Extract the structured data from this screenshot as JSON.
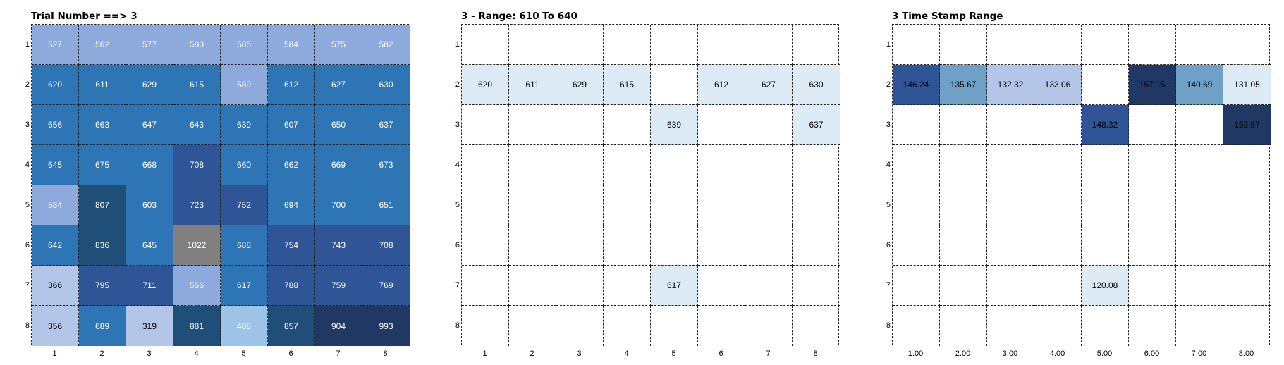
{
  "chart_data": [
    {
      "type": "heatmap",
      "title": "Trial Number ==> 3",
      "row_labels": [
        "1",
        "2",
        "3",
        "4",
        "5",
        "6",
        "7",
        "8"
      ],
      "col_labels": [
        "1",
        "2",
        "3",
        "4",
        "5",
        "6",
        "7",
        "8"
      ],
      "values": [
        [
          527,
          562,
          577,
          580,
          585,
          584,
          575,
          582
        ],
        [
          620,
          611,
          629,
          615,
          589,
          612,
          627,
          630
        ],
        [
          656,
          663,
          647,
          643,
          639,
          607,
          650,
          637
        ],
        [
          645,
          675,
          668,
          708,
          660,
          662,
          669,
          673
        ],
        [
          584,
          807,
          603,
          723,
          752,
          694,
          700,
          651
        ],
        [
          642,
          836,
          645,
          1022,
          688,
          754,
          743,
          708
        ],
        [
          366,
          795,
          711,
          566,
          617,
          788,
          759,
          769
        ],
        [
          356,
          689,
          319,
          881,
          408,
          857,
          904,
          993
        ]
      ],
      "colors": [
        [
          "#8ea9db",
          "#8ea9db",
          "#8ea9db",
          "#8ea9db",
          "#8ea9db",
          "#8ea9db",
          "#8ea9db",
          "#8ea9db"
        ],
        [
          "#2e75b6",
          "#2e75b6",
          "#2e75b6",
          "#2e75b6",
          "#8ea9db",
          "#2e75b6",
          "#2e75b6",
          "#2e75b6"
        ],
        [
          "#2e75b6",
          "#2e75b6",
          "#2e75b6",
          "#2e75b6",
          "#2e75b6",
          "#2e75b6",
          "#2e75b6",
          "#2e75b6"
        ],
        [
          "#2e75b6",
          "#2e75b6",
          "#2e75b6",
          "#2f5597",
          "#2e75b6",
          "#2e75b6",
          "#2e75b6",
          "#2e75b6"
        ],
        [
          "#8ea9db",
          "#1f4e79",
          "#2e75b6",
          "#2f5597",
          "#2f5597",
          "#2e75b6",
          "#2e75b6",
          "#2e75b6"
        ],
        [
          "#2e75b6",
          "#1f4e79",
          "#2e75b6",
          "#808080",
          "#2e75b6",
          "#2f5597",
          "#2f5597",
          "#2f5597"
        ],
        [
          "#b4c6e7",
          "#2f5597",
          "#2f5597",
          "#8ea9db",
          "#2e75b6",
          "#2f5597",
          "#2f5597",
          "#2f5597"
        ],
        [
          "#b4c6e7",
          "#2e75b6",
          "#b4c6e7",
          "#1f4e79",
          "#9dc3e6",
          "#1f4e79",
          "#203864",
          "#203864"
        ]
      ],
      "text_colors": [
        [
          "#ffffff",
          "#ffffff",
          "#ffffff",
          "#ffffff",
          "#ffffff",
          "#ffffff",
          "#ffffff",
          "#ffffff"
        ],
        [
          "#ffffff",
          "#ffffff",
          "#ffffff",
          "#ffffff",
          "#ffffff",
          "#ffffff",
          "#ffffff",
          "#ffffff"
        ],
        [
          "#ffffff",
          "#ffffff",
          "#ffffff",
          "#ffffff",
          "#ffffff",
          "#ffffff",
          "#ffffff",
          "#ffffff"
        ],
        [
          "#ffffff",
          "#ffffff",
          "#ffffff",
          "#ffffff",
          "#ffffff",
          "#ffffff",
          "#ffffff",
          "#ffffff"
        ],
        [
          "#ffffff",
          "#ffffff",
          "#ffffff",
          "#ffffff",
          "#ffffff",
          "#ffffff",
          "#ffffff",
          "#ffffff"
        ],
        [
          "#ffffff",
          "#ffffff",
          "#ffffff",
          "#ffffff",
          "#ffffff",
          "#ffffff",
          "#ffffff",
          "#ffffff"
        ],
        [
          "#000000",
          "#ffffff",
          "#ffffff",
          "#ffffff",
          "#ffffff",
          "#ffffff",
          "#ffffff",
          "#ffffff"
        ],
        [
          "#000000",
          "#ffffff",
          "#000000",
          "#ffffff",
          "#ffffff",
          "#ffffff",
          "#ffffff",
          "#ffffff"
        ]
      ]
    },
    {
      "type": "heatmap",
      "title": "3 - Range: 610 To 640",
      "row_labels": [
        "1",
        "2",
        "3",
        "4",
        "5",
        "6",
        "7",
        "8"
      ],
      "col_labels": [
        "1",
        "2",
        "3",
        "4",
        "5",
        "6",
        "7",
        "8"
      ],
      "values": [
        [
          null,
          null,
          null,
          null,
          null,
          null,
          null,
          null
        ],
        [
          620,
          611,
          629,
          615,
          null,
          612,
          627,
          630
        ],
        [
          null,
          null,
          null,
          null,
          639,
          null,
          null,
          637
        ],
        [
          null,
          null,
          null,
          null,
          null,
          null,
          null,
          null
        ],
        [
          null,
          null,
          null,
          null,
          null,
          null,
          null,
          null
        ],
        [
          null,
          null,
          null,
          null,
          null,
          null,
          null,
          null
        ],
        [
          null,
          null,
          null,
          null,
          617,
          null,
          null,
          null
        ],
        [
          null,
          null,
          null,
          null,
          null,
          null,
          null,
          null
        ]
      ],
      "highlight_color": "#ddebf7"
    },
    {
      "type": "heatmap",
      "title": "3 Time Stamp Range",
      "row_labels": [
        "1",
        "2",
        "3",
        "4",
        "5",
        "6",
        "7",
        "8"
      ],
      "col_labels": [
        "1.00",
        "2.00",
        "3.00",
        "4.00",
        "5.00",
        "6.00",
        "7.00",
        "8.00"
      ],
      "values": [
        [
          null,
          null,
          null,
          null,
          null,
          null,
          null,
          null
        ],
        [
          "146.24",
          "135.67",
          "132.32",
          "133.06",
          null,
          "157.15",
          "140.69",
          "131.05"
        ],
        [
          null,
          null,
          null,
          null,
          "148.32",
          null,
          null,
          "153.87"
        ],
        [
          null,
          null,
          null,
          null,
          null,
          null,
          null,
          null
        ],
        [
          null,
          null,
          null,
          null,
          null,
          null,
          null,
          null
        ],
        [
          null,
          null,
          null,
          null,
          null,
          null,
          null,
          null
        ],
        [
          null,
          null,
          null,
          null,
          "120.08",
          null,
          null,
          null
        ],
        [
          null,
          null,
          null,
          null,
          null,
          null,
          null,
          null
        ]
      ],
      "colors": [
        [
          null,
          null,
          null,
          null,
          null,
          null,
          null,
          null
        ],
        [
          "#2f5597",
          "#6fa0c6",
          "#b4c6e7",
          "#b4c6e7",
          null,
          "#203864",
          "#6fa0c6",
          "#ddebf7"
        ],
        [
          null,
          null,
          null,
          null,
          "#2f5597",
          null,
          null,
          "#203864"
        ],
        [
          null,
          null,
          null,
          null,
          null,
          null,
          null,
          null
        ],
        [
          null,
          null,
          null,
          null,
          null,
          null,
          null,
          null
        ],
        [
          null,
          null,
          null,
          null,
          null,
          null,
          null,
          null
        ],
        [
          null,
          null,
          null,
          null,
          "#ddebf7",
          null,
          null,
          null
        ],
        [
          null,
          null,
          null,
          null,
          null,
          null,
          null,
          null
        ]
      ],
      "text_colors": [
        [
          null,
          null,
          null,
          null,
          null,
          null,
          null,
          null
        ],
        [
          "#000000",
          "#000000",
          "#000000",
          "#000000",
          null,
          "#000000",
          "#000000",
          "#000000"
        ],
        [
          null,
          null,
          null,
          null,
          "#000000",
          null,
          null,
          "#000000"
        ],
        [
          null,
          null,
          null,
          null,
          null,
          null,
          null,
          null
        ],
        [
          null,
          null,
          null,
          null,
          null,
          null,
          null,
          null
        ],
        [
          null,
          null,
          null,
          null,
          null,
          null,
          null,
          null
        ],
        [
          null,
          null,
          null,
          null,
          "#000000",
          null,
          null,
          null
        ],
        [
          null,
          null,
          null,
          null,
          null,
          null,
          null,
          null
        ]
      ]
    }
  ]
}
